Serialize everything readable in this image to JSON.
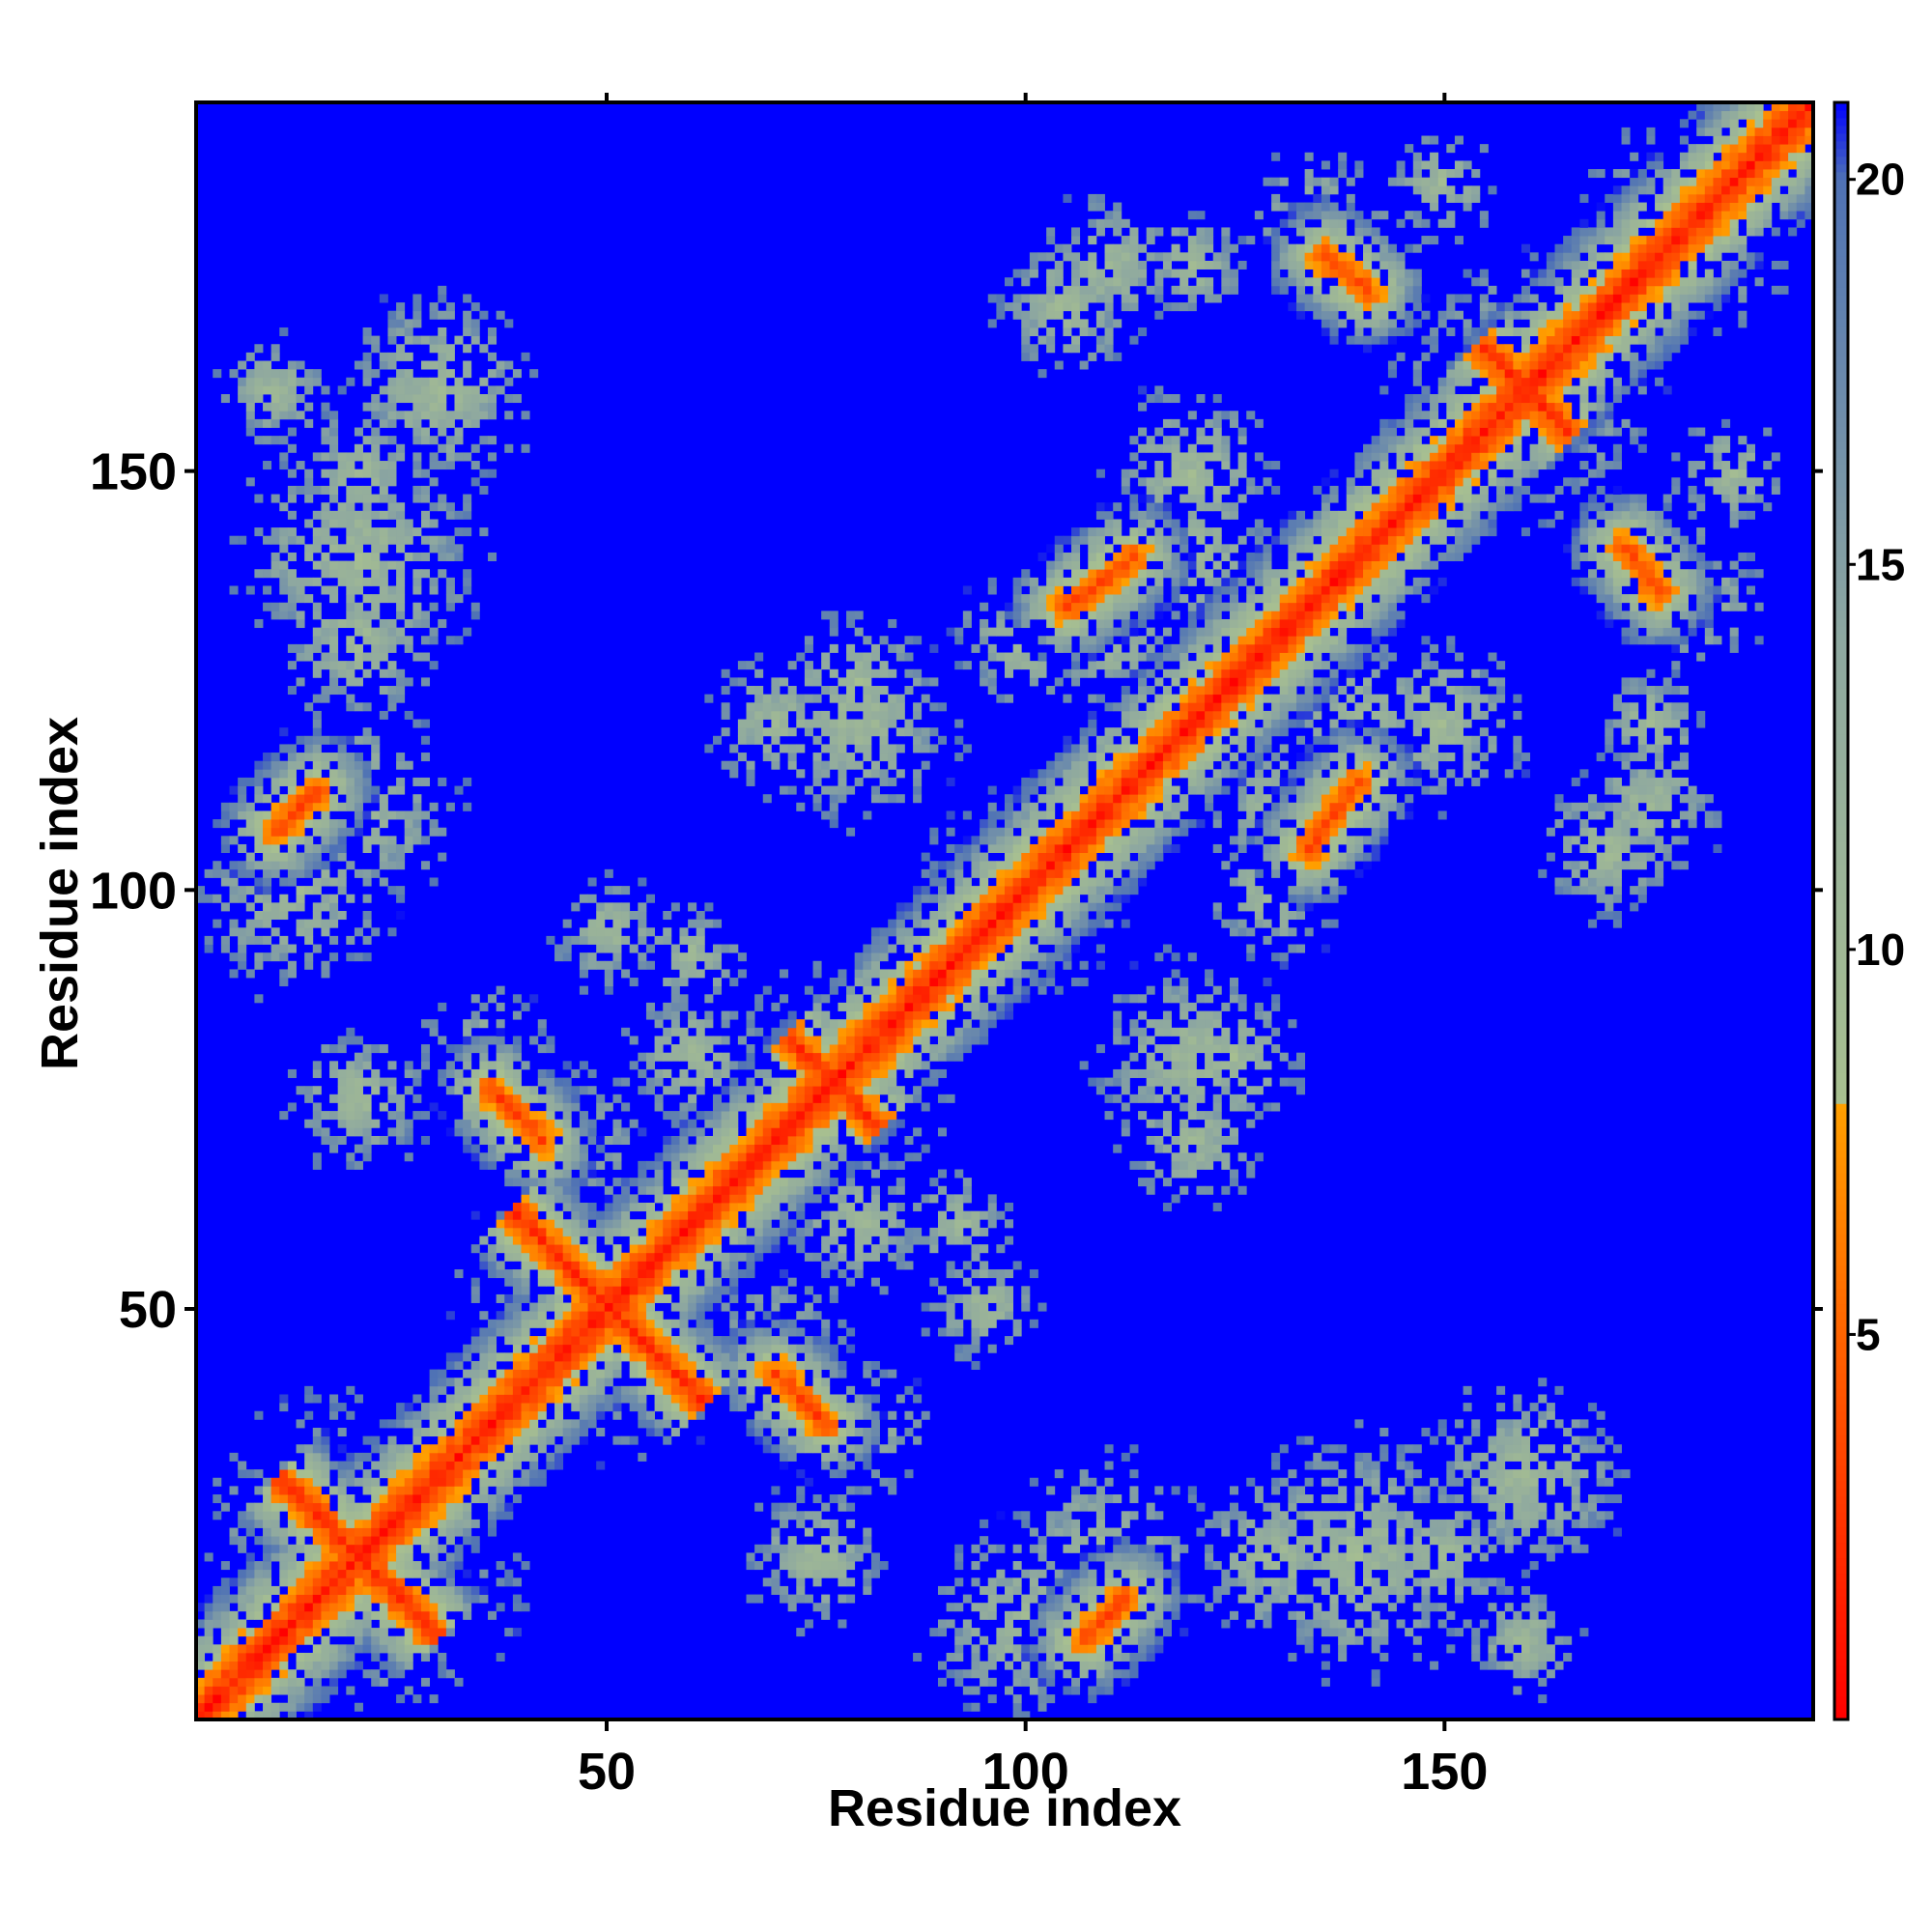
{
  "chart_data": {
    "type": "heatmap",
    "title": "",
    "xlabel": "Residue index",
    "ylabel": "Residue index",
    "xlim": [
      1,
      194
    ],
    "ylim": [
      1,
      194
    ],
    "x_ticks": [
      50,
      100,
      150
    ],
    "y_ticks": [
      50,
      100,
      150
    ],
    "colorbar": {
      "range": [
        0,
        21
      ],
      "ticks": [
        5,
        10,
        15,
        20
      ],
      "stops": [
        {
          "value": 0,
          "color": "#ff0000"
        },
        {
          "value": 4,
          "color": "#ff5000"
        },
        {
          "value": 8,
          "color": "#ffa000"
        },
        {
          "value": 8.01,
          "color": "#a8c090"
        },
        {
          "value": 14,
          "color": "#8ea8a0"
        },
        {
          "value": 20,
          "color": "#4f72b5"
        },
        {
          "value": 21,
          "color": "#0000ff"
        }
      ]
    },
    "background_color": "#0000ff",
    "description_note_removed": true,
    "contact_features": [
      {
        "type": "diagonal",
        "from": 1,
        "to": 194
      },
      {
        "type": "antiparallel",
        "center": [
          20,
          20
        ],
        "half_length": 10
      },
      {
        "type": "antiparallel",
        "center": [
          50,
          50
        ],
        "half_length": 12
      },
      {
        "type": "antiparallel",
        "center": [
          77,
          77
        ],
        "half_length": 6
      },
      {
        "type": "antiparallel",
        "center": [
          160,
          160
        ],
        "half_length": 6
      },
      {
        "type": "parallel",
        "start": [
          42,
          70
        ],
        "end": [
          36,
          76
        ]
      },
      {
        "type": "parallel",
        "start": [
          53,
          44
        ],
        "end": [
          57,
          38
        ]
      },
      {
        "type": "parallel",
        "start": [
          66,
          45
        ],
        "end": [
          73,
          38
        ]
      },
      {
        "type": "parallel",
        "start": [
          104,
          6
        ],
        "end": [
          112,
          12
        ]
      },
      {
        "type": "parallel",
        "start": [
          133,
          102
        ],
        "end": [
          141,
          111
        ]
      },
      {
        "type": "parallel",
        "start": [
          105,
          134
        ],
        "end": [
          113,
          140
        ]
      },
      {
        "type": "parallel",
        "start": [
          10,
          107
        ],
        "end": [
          15,
          112
        ]
      },
      {
        "type": "parallel",
        "start": [
          172,
          138
        ],
        "end": [
          177,
          134
        ]
      },
      {
        "type": "parallel",
        "start": [
          136,
          176
        ],
        "end": [
          141,
          172
        ]
      }
    ]
  }
}
